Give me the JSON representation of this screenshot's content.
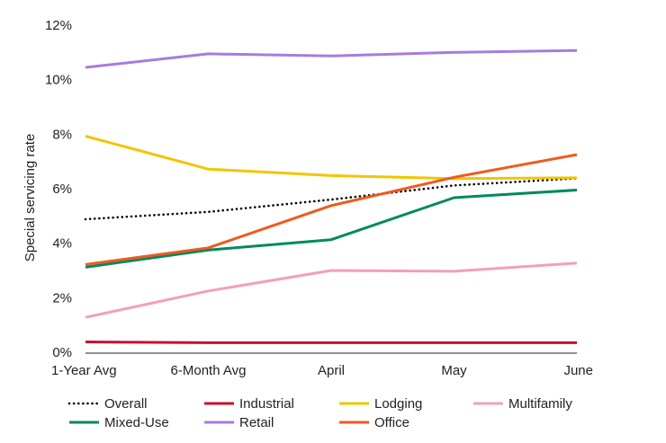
{
  "chart_data": {
    "type": "line",
    "title": "",
    "xlabel": "",
    "ylabel": "Special servicing rate",
    "categories": [
      "1-Year Avg",
      "6-Month Avg",
      "April",
      "May",
      "June"
    ],
    "ylim": [
      0,
      12
    ],
    "yticks": [
      0,
      2,
      4,
      6,
      8,
      10,
      12
    ],
    "ytick_labels": [
      "0%",
      "2%",
      "4%",
      "6%",
      "8%",
      "10%",
      "12%"
    ],
    "grid": false,
    "legend_position": "bottom",
    "series": [
      {
        "name": "Overall",
        "color": "#000000",
        "dash": "dotted",
        "values": [
          4.88,
          5.15,
          5.6,
          6.12,
          6.38
        ]
      },
      {
        "name": "Industrial",
        "color": "#C8102E",
        "dash": "solid",
        "values": [
          0.38,
          0.35,
          0.35,
          0.35,
          0.35
        ]
      },
      {
        "name": "Lodging",
        "color": "#F2C500",
        "dash": "solid",
        "values": [
          7.93,
          6.72,
          6.48,
          6.37,
          6.4
        ]
      },
      {
        "name": "Multifamily",
        "color": "#F4A0B4",
        "dash": "solid",
        "values": [
          1.28,
          2.25,
          3.0,
          2.97,
          3.27
        ]
      },
      {
        "name": "Mixed-Use",
        "color": "#008A5E",
        "dash": "solid",
        "values": [
          3.12,
          3.75,
          4.13,
          5.67,
          5.95
        ]
      },
      {
        "name": "Retail",
        "color": "#A77BE0",
        "dash": "solid",
        "values": [
          10.45,
          10.95,
          10.87,
          11.0,
          11.07
        ]
      },
      {
        "name": "Office",
        "color": "#F05A1E",
        "dash": "solid",
        "values": [
          3.22,
          3.83,
          5.38,
          6.42,
          7.25
        ]
      }
    ]
  }
}
